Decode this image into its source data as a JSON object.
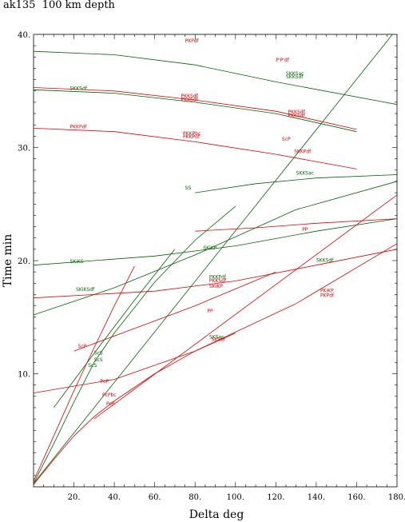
{
  "chart_data": {
    "type": "line",
    "title": "ak135  100 km depth",
    "xlabel": "Delta  deg",
    "ylabel": "Time  min",
    "xlim": [
      0,
      180
    ],
    "ylim": [
      0,
      40
    ],
    "x_ticks": [
      {
        "value": 20,
        "label": "20."
      },
      {
        "value": 40,
        "label": "40."
      },
      {
        "value": 60,
        "label": "60."
      },
      {
        "value": 80,
        "label": "80."
      },
      {
        "value": 100,
        "label": "100."
      },
      {
        "value": 120,
        "label": "120."
      },
      {
        "value": 140,
        "label": "140."
      },
      {
        "value": 160,
        "label": "160."
      },
      {
        "value": 180,
        "label": "180."
      }
    ],
    "y_ticks": [
      {
        "value": 10,
        "label": "10."
      },
      {
        "value": 20,
        "label": "20."
      },
      {
        "value": 30,
        "label": "30."
      },
      {
        "value": 40,
        "label": "40."
      }
    ],
    "colors": {
      "P_family": "#e00000",
      "S_family": "#006400",
      "axes": "#000000"
    },
    "series": [
      {
        "color": "#e00000",
        "x": [
          0,
          10,
          20,
          30,
          40,
          60,
          80,
          100
        ],
        "y": [
          0.2,
          2.4,
          4.5,
          6.2,
          7.6,
          10.0,
          12.0,
          13.6
        ]
      },
      {
        "color": "#006400",
        "x": [
          0,
          10,
          20,
          30,
          40,
          60,
          80,
          100
        ],
        "y": [
          0.3,
          3.8,
          7.5,
          11.0,
          13.6,
          18.1,
          21.8,
          24.8
        ]
      },
      {
        "color": "#e00000",
        "x": [
          0,
          40,
          80,
          130,
          180
        ],
        "y": [
          8.3,
          9.5,
          12.0,
          16.2,
          21.5
        ]
      },
      {
        "color": "#006400",
        "x": [
          0,
          40,
          80,
          130,
          180
        ],
        "y": [
          15.2,
          17.6,
          20.5,
          24.5,
          27.0
        ]
      },
      {
        "color": "#e00000",
        "x": [
          0,
          60,
          100,
          140,
          180
        ],
        "y": [
          16.7,
          17.3,
          18.2,
          19.6,
          21.0
        ]
      },
      {
        "color": "#006400",
        "x": [
          0,
          60,
          100,
          140,
          180
        ],
        "y": [
          19.6,
          20.4,
          21.3,
          22.6,
          23.7
        ]
      },
      {
        "color": "#e00000",
        "x": [
          0,
          40,
          80,
          120,
          160
        ],
        "y": [
          31.7,
          31.4,
          30.5,
          29.4,
          28.1
        ]
      },
      {
        "color": "#006400",
        "x": [
          0,
          40,
          80,
          120,
          180
        ],
        "y": [
          38.5,
          38.2,
          37.3,
          35.8,
          33.8
        ]
      },
      {
        "color": "#e00000",
        "x": [
          0,
          40,
          80,
          120,
          160
        ],
        "y": [
          35.3,
          35.0,
          34.2,
          33.2,
          31.6
        ]
      },
      {
        "color": "#006400",
        "x": [
          0,
          40,
          80,
          120,
          160
        ],
        "y": [
          35.1,
          34.8,
          34.0,
          33.0,
          31.4
        ]
      },
      {
        "color": "#e00000",
        "x": [
          0,
          10,
          20,
          30,
          40,
          50
        ],
        "y": [
          0.5,
          4.5,
          8.5,
          12.3,
          16.0,
          19.5
        ]
      },
      {
        "color": "#006400",
        "x": [
          0,
          180
        ],
        "y": [
          0.3,
          40.5
        ]
      },
      {
        "color": "#e00000",
        "x": [
          30,
          180
        ],
        "y": [
          6.0,
          25.8
        ]
      },
      {
        "color": "#e00000",
        "x": [
          20,
          50,
          80,
          120
        ],
        "y": [
          12.0,
          14.0,
          16.0,
          19.0
        ]
      },
      {
        "color": "#006400",
        "x": [
          10,
          30,
          50,
          70
        ],
        "y": [
          7.0,
          11.8,
          16.5,
          21.0
        ]
      },
      {
        "color": "#e00000",
        "x": [
          80,
          110,
          140,
          180
        ],
        "y": [
          22.6,
          22.9,
          23.3,
          23.7
        ]
      },
      {
        "color": "#006400",
        "x": [
          80,
          110,
          140,
          180
        ],
        "y": [
          26.0,
          26.8,
          27.3,
          27.6
        ]
      }
    ],
    "annotations": [
      {
        "text": "PKPdf",
        "x": 75,
        "y": 39.3,
        "color": "#e00000"
      },
      {
        "text": "P'P'df",
        "x": 120,
        "y": 37.6,
        "color": "#e00000"
      },
      {
        "text": "SKKSac",
        "x": 125,
        "y": 36.4,
        "color": "#006400"
      },
      {
        "text": "SKKSdf",
        "x": 125,
        "y": 36.1,
        "color": "#006400"
      },
      {
        "text": "SKKSdf",
        "x": 18,
        "y": 35.1,
        "color": "#006400"
      },
      {
        "text": "PKKSdf",
        "x": 73,
        "y": 34.4,
        "color": "#e00000"
      },
      {
        "text": "PKKSdf",
        "x": 73,
        "y": 34.1,
        "color": "#e00000"
      },
      {
        "text": "PKKSdf",
        "x": 126,
        "y": 33.0,
        "color": "#e00000"
      },
      {
        "text": "PKKSdf",
        "x": 126,
        "y": 32.7,
        "color": "#e00000"
      },
      {
        "text": "PKKPdf",
        "x": 18,
        "y": 31.7,
        "color": "#e00000"
      },
      {
        "text": "PKKPbc",
        "x": 74,
        "y": 31.1,
        "color": "#e00000"
      },
      {
        "text": "PKKPdf",
        "x": 74,
        "y": 30.8,
        "color": "#e00000"
      },
      {
        "text": "ScP",
        "x": 123,
        "y": 30.6,
        "color": "#e00000"
      },
      {
        "text": "SKKPdf",
        "x": 129,
        "y": 29.5,
        "color": "#e00000"
      },
      {
        "text": "SKKSac",
        "x": 130,
        "y": 27.6,
        "color": "#006400"
      },
      {
        "text": "SS",
        "x": 75,
        "y": 26.3,
        "color": "#006400"
      },
      {
        "text": "PP",
        "x": 133,
        "y": 22.6,
        "color": "#e00000"
      },
      {
        "text": "SKiKP",
        "x": 84,
        "y": 21.0,
        "color": "#006400"
      },
      {
        "text": "SKiKS",
        "x": 18,
        "y": 19.8,
        "color": "#006400"
      },
      {
        "text": "SKKSdf",
        "x": 140,
        "y": 19.9,
        "color": "#006400"
      },
      {
        "text": "PKKPdf",
        "x": 87,
        "y": 18.4,
        "color": "#006400"
      },
      {
        "text": "PKKSdf",
        "x": 87,
        "y": 18.1,
        "color": "#e00000"
      },
      {
        "text": "SKiKP",
        "x": 87,
        "y": 17.6,
        "color": "#e00000"
      },
      {
        "text": "SKiKSdf",
        "x": 21,
        "y": 17.3,
        "color": "#006400"
      },
      {
        "text": "PP",
        "x": 86,
        "y": 15.4,
        "color": "#e00000"
      },
      {
        "text": "PKiKP",
        "x": 142,
        "y": 17.2,
        "color": "#e00000"
      },
      {
        "text": "PKPdf",
        "x": 142,
        "y": 16.8,
        "color": "#e00000"
      },
      {
        "text": "SKSac",
        "x": 87,
        "y": 13.1,
        "color": "#006400"
      },
      {
        "text": "SKSdf",
        "x": 88,
        "y": 12.9,
        "color": "#e00000"
      },
      {
        "text": "ScP",
        "x": 22,
        "y": 12.3,
        "color": "#e00000"
      },
      {
        "text": "ScS",
        "x": 30,
        "y": 11.7,
        "color": "#006400"
      },
      {
        "text": "ScS",
        "x": 30,
        "y": 11.1,
        "color": "#006400"
      },
      {
        "text": "ScS",
        "x": 27,
        "y": 10.6,
        "color": "#006400"
      },
      {
        "text": "PcP",
        "x": 33,
        "y": 9.2,
        "color": "#e00000"
      },
      {
        "text": "PcPbc",
        "x": 34,
        "y": 8.0,
        "color": "#e00000"
      },
      {
        "text": "PcP",
        "x": 36,
        "y": 7.2,
        "color": "#e00000"
      }
    ],
    "grid": false,
    "legend": "none"
  }
}
